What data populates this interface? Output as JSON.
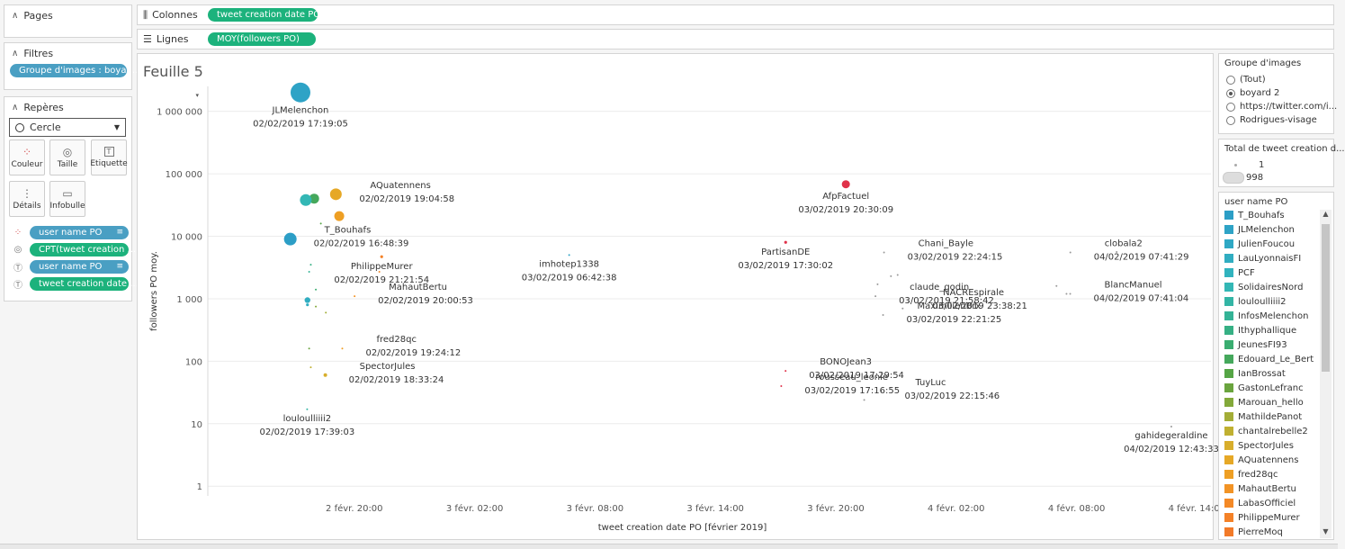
{
  "left_panel": {
    "pages": {
      "label": "Pages"
    },
    "filters": {
      "label": "Filtres",
      "pill": "Groupe d'images : boyar..."
    },
    "marks": {
      "label": "Repères",
      "mark_type": "Cercle",
      "buttons": {
        "color": "Couleur",
        "size": "Taille",
        "label": "Etiquette",
        "details": "Détails",
        "tooltip": "Infobulle"
      },
      "fields": [
        {
          "icon": "color-icon",
          "text": "user name PO",
          "style": "blue",
          "sort": true
        },
        {
          "icon": "size-icon",
          "text": "CPT(tweet creation ...",
          "style": "green",
          "sort": false
        },
        {
          "icon": "label-icon",
          "text": "user name PO",
          "style": "blue",
          "sort": true
        },
        {
          "icon": "label-icon",
          "text": "tweet creation date ...",
          "style": "green",
          "sort": false
        }
      ]
    }
  },
  "shelves": {
    "columns": {
      "label": "Colonnes",
      "pill": "tweet creation date PO"
    },
    "rows": {
      "label": "Lignes",
      "pill": "MOY(followers PO)"
    }
  },
  "sheet": {
    "title": "Feuille 5"
  },
  "right_panel": {
    "image_group": {
      "title": "Groupe d'images",
      "options": [
        {
          "label": "(Tout)",
          "selected": false
        },
        {
          "label": "boyard 2",
          "selected": true
        },
        {
          "label": "https://twitter.com/i...",
          "selected": false
        },
        {
          "label": "Rodrigues-visage",
          "selected": false
        }
      ]
    },
    "size_legend": {
      "title": "Total de tweet creation d...",
      "items": [
        {
          "label": "1"
        },
        {
          "label": "998"
        }
      ]
    },
    "color_legend": {
      "title": "user name PO",
      "items": [
        {
          "label": "T_Bouhafs",
          "color": "#2c9ec6"
        },
        {
          "label": "JLMelenchon",
          "color": "#2ea3c6"
        },
        {
          "label": "JulienFoucou",
          "color": "#2fa8c4"
        },
        {
          "label": "LauLyonnaisFI",
          "color": "#30adc1"
        },
        {
          "label": "PCF",
          "color": "#31b3be"
        },
        {
          "label": "SolidairesNord",
          "color": "#33b7b5"
        },
        {
          "label": "louloulliiii2",
          "color": "#33b5a5"
        },
        {
          "label": "InfosMelenchon",
          "color": "#34b396"
        },
        {
          "label": "Ithyphallique",
          "color": "#36b084"
        },
        {
          "label": "JeunesFI93",
          "color": "#3aad70"
        },
        {
          "label": "Edouard_Le_Bert",
          "color": "#45a85c"
        },
        {
          "label": "IanBrossat",
          "color": "#55a545"
        },
        {
          "label": "GastonLefranc",
          "color": "#6aa43e"
        },
        {
          "label": "Marouan_hello",
          "color": "#83a93a"
        },
        {
          "label": "MathildePanot",
          "color": "#a3ad37"
        },
        {
          "label": "chantalrebelle2",
          "color": "#c0b031"
        },
        {
          "label": "SpectorJules",
          "color": "#d8ae2c"
        },
        {
          "label": "AQuatennens",
          "color": "#e6a826"
        },
        {
          "label": "fred28qc",
          "color": "#ee9f24"
        },
        {
          "label": "MahautBertu",
          "color": "#f29325"
        },
        {
          "label": "LabasOfficiel",
          "color": "#f48926"
        },
        {
          "label": "PhilippeMurer",
          "color": "#f48127"
        },
        {
          "label": "PierreMoq",
          "color": "#f27a28"
        }
      ]
    }
  },
  "chart_data": {
    "type": "scatter",
    "title": "Feuille 5",
    "xlabel": "tweet creation date PO [février 2019]",
    "ylabel": "followers PO moy.",
    "xscale": "time",
    "yscale": "log",
    "xlim": [
      "2019-02-02 12:42",
      "2019-02-04 14:42"
    ],
    "ylim": [
      0.7,
      2500000
    ],
    "x_ticks": [
      {
        "value": "2019-02-02 20:00",
        "label": "2 févr. 20:00"
      },
      {
        "value": "2019-02-03 02:00",
        "label": "3 févr. 02:00"
      },
      {
        "value": "2019-02-03 08:00",
        "label": "3 févr. 08:00"
      },
      {
        "value": "2019-02-03 14:00",
        "label": "3 févr. 14:00"
      },
      {
        "value": "2019-02-03 20:00",
        "label": "3 févr. 20:00"
      },
      {
        "value": "2019-02-04 02:00",
        "label": "4 févr. 02:00"
      },
      {
        "value": "2019-02-04 08:00",
        "label": "4 févr. 08:00"
      },
      {
        "value": "2019-02-04 14:00",
        "label": "4 févr. 14:00"
      }
    ],
    "y_ticks": [
      {
        "value": 1,
        "label": "1"
      },
      {
        "value": 10,
        "label": "10"
      },
      {
        "value": 100,
        "label": "100"
      },
      {
        "value": 1000,
        "label": "1 000"
      },
      {
        "value": 10000,
        "label": "10 000"
      },
      {
        "value": 100000,
        "label": "100 000"
      },
      {
        "value": 1000000,
        "label": "1 000 000"
      }
    ],
    "points": [
      {
        "x": "2019-02-02 17:19:05",
        "y": 2000000,
        "user": "JLMelenchon",
        "date_label": "02/02/2019 17:19:05",
        "count": 998,
        "color": "#2ea3c6",
        "label_pos": "below"
      },
      {
        "x": "2019-02-02 19:04:58",
        "y": 47000,
        "user": "AQuatennens",
        "date_label": "02/02/2019 19:04:58",
        "count": 60,
        "color": "#e6a826",
        "label_pos": "right"
      },
      {
        "x": "2019-02-02 16:48:39",
        "y": 9000,
        "user": "T_Bouhafs",
        "date_label": "02/02/2019 16:48:39",
        "count": 130,
        "color": "#2c9ec6",
        "label_pos": "right"
      },
      {
        "x": "2019-02-02 21:21:54",
        "y": 4700,
        "user": "PhilippeMurer",
        "date_label": "02/02/2019 21:21:54",
        "count": 2,
        "color": "#f48127",
        "label_pos": "below"
      },
      {
        "x": "2019-02-03 06:42:38",
        "y": 5000,
        "user": "imhotep1338",
        "date_label": "03/02/2019 06:42:38",
        "count": 1,
        "color": "#2ea3c6",
        "label_pos": "below"
      },
      {
        "x": "2019-02-02 20:00:53",
        "y": 1100,
        "user": "MahautBertu",
        "date_label": "02/02/2019 20:00:53",
        "count": 1,
        "color": "#f29325",
        "label_pos": "right"
      },
      {
        "x": "2019-02-02 19:24:12",
        "y": 160,
        "user": "fred28qc",
        "date_label": "02/02/2019 19:24:12",
        "count": 1,
        "color": "#ee9f24",
        "label_pos": "right"
      },
      {
        "x": "2019-02-02 18:33:24",
        "y": 60,
        "user": "SpectorJules",
        "date_label": "02/02/2019 18:33:24",
        "count": 3,
        "color": "#d8ae2c",
        "label_pos": "right"
      },
      {
        "x": "2019-02-02 17:39:03",
        "y": 17,
        "user": "louloulliiii2",
        "date_label": "02/02/2019 17:39:03",
        "count": 1,
        "color": "#33b5a5",
        "label_pos": "below"
      },
      {
        "x": "2019-02-03 20:30:09",
        "y": 68000,
        "user": "AfpFactuel",
        "date_label": "03/02/2019 20:30:09",
        "count": 25,
        "color": "#e0324a",
        "label_pos": "below"
      },
      {
        "x": "2019-02-03 17:30:02",
        "y": 8000,
        "user": "PartisanDE",
        "date_label": "03/02/2019 17:30:02",
        "count": 2,
        "color": "#e0324a",
        "label_pos": "below"
      },
      {
        "x": "2019-02-03 22:24:15",
        "y": 5500,
        "user": "Chani_Bayle",
        "date_label": "03/02/2019 22:24:15",
        "count": 1,
        "color": "#999999",
        "label_pos": "right"
      },
      {
        "x": "2019-02-03 21:58:42",
        "y": 1100,
        "user": "claude_godin",
        "date_label": "03/02/2019 21:58:42",
        "count": 1,
        "color": "#999999",
        "label_pos": "right"
      },
      {
        "x": "2019-02-03 23:38:21",
        "y": 900,
        "user": "NACREspirale",
        "date_label": "03/02/2019 23:38:21",
        "count": 1,
        "color": "#999999",
        "label_pos": "right"
      },
      {
        "x": "2019-02-03 22:21:25",
        "y": 550,
        "user": "MaximilienBrx",
        "date_label": "03/02/2019 22:21:25",
        "count": 1,
        "color": "#999999",
        "label_pos": "right"
      },
      {
        "x": "2019-02-03 17:29:54",
        "y": 70,
        "user": "BONOJean3",
        "date_label": "03/02/2019 17:29:54",
        "count": 1,
        "color": "#e0324a",
        "label_pos": "right"
      },
      {
        "x": "2019-02-03 17:16:55",
        "y": 40,
        "user": "rousseau_leonie",
        "date_label": "03/02/2019 17:16:55",
        "count": 1,
        "color": "#e0324a",
        "label_pos": "right"
      },
      {
        "x": "2019-02-03 22:15:46",
        "y": 33,
        "user": "TuyLuc",
        "date_label": "03/02/2019 22:15:46",
        "count": 1,
        "color": "#999999",
        "label_pos": "right"
      },
      {
        "x": "2019-02-04 07:41:29",
        "y": 5500,
        "user": "clobala2",
        "date_label": "04/02/2019 07:41:29",
        "count": 1,
        "color": "#999999",
        "label_pos": "right"
      },
      {
        "x": "2019-02-04 07:41:04",
        "y": 1200,
        "user": "BlancManuel",
        "date_label": "04/02/2019 07:41:04",
        "count": 1,
        "color": "#999999",
        "label_pos": "right"
      },
      {
        "x": "2019-02-04 12:43:33",
        "y": 9,
        "user": "gahidegeraldine",
        "date_label": "04/02/2019 12:43:33",
        "count": 1,
        "color": "#999999",
        "label_pos": "below"
      },
      {
        "x": "2019-02-02 17:35:00",
        "y": 38000,
        "user": "",
        "date_label": "",
        "count": 80,
        "color": "#33b7b5",
        "label_pos": "none"
      },
      {
        "x": "2019-02-02 18:00:00",
        "y": 40000,
        "user": "",
        "date_label": "",
        "count": 45,
        "color": "#45a85c",
        "label_pos": "none"
      },
      {
        "x": "2019-02-02 19:15:00",
        "y": 21000,
        "user": "",
        "date_label": "",
        "count": 55,
        "color": "#ee9f24",
        "label_pos": "none"
      },
      {
        "x": "2019-02-02 17:40:00",
        "y": 950,
        "user": "",
        "date_label": "",
        "count": 12,
        "color": "#30adc1",
        "label_pos": "none"
      },
      {
        "x": "2019-02-02 17:40:00",
        "y": 800,
        "user": "",
        "date_label": "",
        "count": 2,
        "color": "#30adc1",
        "label_pos": "none"
      },
      {
        "x": "2019-02-02 17:50:00",
        "y": 3500,
        "user": "",
        "date_label": "",
        "count": 1,
        "color": "#36b084",
        "label_pos": "none"
      },
      {
        "x": "2019-02-02 17:45:00",
        "y": 2700,
        "user": "",
        "date_label": "",
        "count": 1,
        "color": "#34b396",
        "label_pos": "none"
      },
      {
        "x": "2019-02-02 18:05:00",
        "y": 1400,
        "user": "",
        "date_label": "",
        "count": 1,
        "color": "#3aad70",
        "label_pos": "none"
      },
      {
        "x": "2019-02-02 18:20:00",
        "y": 16000,
        "user": "",
        "date_label": "",
        "count": 1,
        "color": "#55a545",
        "label_pos": "none"
      },
      {
        "x": "2019-02-02 18:05:00",
        "y": 750,
        "user": "",
        "date_label": "",
        "count": 1,
        "color": "#83a93a",
        "label_pos": "none"
      },
      {
        "x": "2019-02-02 18:35:00",
        "y": 600,
        "user": "",
        "date_label": "",
        "count": 1,
        "color": "#a3ad37",
        "label_pos": "none"
      },
      {
        "x": "2019-02-02 17:50:00",
        "y": 80,
        "user": "",
        "date_label": "",
        "count": 1,
        "color": "#c0b031",
        "label_pos": "none"
      },
      {
        "x": "2019-02-02 17:45:00",
        "y": 160,
        "user": "",
        "date_label": "",
        "count": 1,
        "color": "#6aa43e",
        "label_pos": "none"
      },
      {
        "x": "2019-02-02 21:15:00",
        "y": 2700,
        "user": "",
        "date_label": "",
        "count": 1,
        "color": "#f48926",
        "label_pos": "none"
      },
      {
        "x": "2019-02-03 22:45:00",
        "y": 2300,
        "user": "",
        "date_label": "",
        "count": 1,
        "color": "#999999",
        "label_pos": "none"
      },
      {
        "x": "2019-02-03 23:05:00",
        "y": 2400,
        "user": "",
        "date_label": "",
        "count": 1,
        "color": "#999999",
        "label_pos": "none"
      },
      {
        "x": "2019-02-03 22:05:00",
        "y": 1700,
        "user": "",
        "date_label": "",
        "count": 1,
        "color": "#999999",
        "label_pos": "none"
      },
      {
        "x": "2019-02-03 23:20:00",
        "y": 700,
        "user": "",
        "date_label": "",
        "count": 1,
        "color": "#999999",
        "label_pos": "none"
      },
      {
        "x": "2019-02-03 21:25:00",
        "y": 24,
        "user": "",
        "date_label": "",
        "count": 1,
        "color": "#999999",
        "label_pos": "none"
      },
      {
        "x": "2019-02-04 07:00:00",
        "y": 1600,
        "user": "",
        "date_label": "",
        "count": 1,
        "color": "#999999",
        "label_pos": "none"
      },
      {
        "x": "2019-02-04 07:30:00",
        "y": 1200,
        "user": "",
        "date_label": "",
        "count": 1,
        "color": "#999999",
        "label_pos": "none"
      },
      {
        "x": "2019-02-04 10:00:00",
        "y": 5600,
        "user": "",
        "date_label": "",
        "count": 1,
        "color": "#999999",
        "label_pos": "none"
      }
    ]
  }
}
